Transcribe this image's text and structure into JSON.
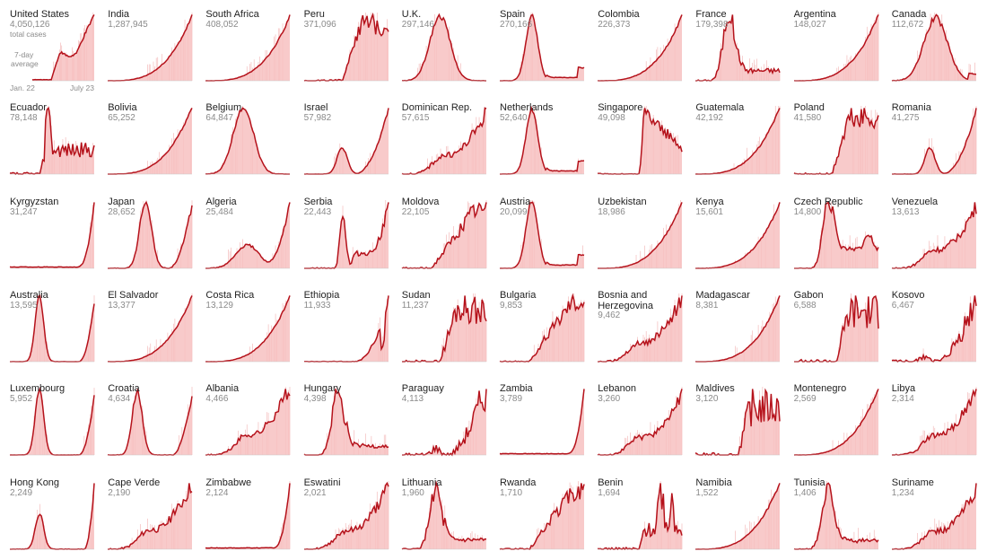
{
  "colors": {
    "line": "#b5121b",
    "fill": "#f7c1c1",
    "spike": "#f2b0b0"
  },
  "legend": {
    "total_cases": "total cases",
    "avg_line1": "7-day",
    "avg_line2": "average",
    "date_start": "Jan. 22",
    "date_end": "July 23"
  },
  "chart_data": {
    "type": "area",
    "panels": [
      {
        "name": "United States",
        "cases": "4,050,126",
        "shape": "us"
      },
      {
        "name": "India",
        "cases": "1,287,945",
        "shape": "exp"
      },
      {
        "name": "South Africa",
        "cases": "408,052",
        "shape": "exp"
      },
      {
        "name": "Peru",
        "cases": "371,096",
        "shape": "plateau_noisy"
      },
      {
        "name": "U.K.",
        "cases": "297,146",
        "shape": "early_peak"
      },
      {
        "name": "Spain",
        "cases": "270,166",
        "shape": "early_sharp"
      },
      {
        "name": "Colombia",
        "cases": "226,373",
        "shape": "exp"
      },
      {
        "name": "France",
        "cases": "179,398",
        "shape": "early_noisy"
      },
      {
        "name": "Argentina",
        "cases": "148,027",
        "shape": "exp"
      },
      {
        "name": "Canada",
        "cases": "112,672",
        "shape": "canada"
      },
      {
        "name": "Ecuador",
        "cases": "78,148",
        "shape": "ecuador"
      },
      {
        "name": "Bolivia",
        "cases": "65,252",
        "shape": "exp"
      },
      {
        "name": "Belgium",
        "cases": "64,847",
        "shape": "early_peak"
      },
      {
        "name": "Israel",
        "cases": "57,982",
        "shape": "israel"
      },
      {
        "name": "Dominican Rep.",
        "cases": "57,615",
        "shape": "exp_noisy"
      },
      {
        "name": "Netherlands",
        "cases": "52,640",
        "shape": "early_sharp"
      },
      {
        "name": "Singapore",
        "cases": "49,098",
        "shape": "singapore"
      },
      {
        "name": "Guatemala",
        "cases": "42,192",
        "shape": "exp"
      },
      {
        "name": "Poland",
        "cases": "41,580",
        "shape": "plateau_noisy"
      },
      {
        "name": "Romania",
        "cases": "41,275",
        "shape": "israel"
      },
      {
        "name": "Kyrgyzstan",
        "cases": "31,247",
        "shape": "late_spike"
      },
      {
        "name": "Japan",
        "cases": "28,652",
        "shape": "japan"
      },
      {
        "name": "Algeria",
        "cases": "25,484",
        "shape": "algeria"
      },
      {
        "name": "Serbia",
        "cases": "22,443",
        "shape": "serbia"
      },
      {
        "name": "Moldova",
        "cases": "22,105",
        "shape": "moldova"
      },
      {
        "name": "Austria",
        "cases": "20,099",
        "shape": "early_sharp"
      },
      {
        "name": "Uzbekistan",
        "cases": "18,986",
        "shape": "exp"
      },
      {
        "name": "Kenya",
        "cases": "15,601",
        "shape": "exp"
      },
      {
        "name": "Czech Republic",
        "cases": "14,800",
        "shape": "czech"
      },
      {
        "name": "Venezuela",
        "cases": "13,613",
        "shape": "exp_noisy"
      },
      {
        "name": "Australia",
        "cases": "13,595",
        "shape": "australia"
      },
      {
        "name": "El Salvador",
        "cases": "13,377",
        "shape": "exp"
      },
      {
        "name": "Costa Rica",
        "cases": "13,129",
        "shape": "exp"
      },
      {
        "name": "Ethiopia",
        "cases": "11,933",
        "shape": "ethiopia"
      },
      {
        "name": "Sudan",
        "cases": "11,237",
        "shape": "sudan"
      },
      {
        "name": "Bulgaria",
        "cases": "9,853",
        "shape": "moldova"
      },
      {
        "name": "Bosnia and\nHerzegovina",
        "cases": "9,462",
        "shape": "exp_noisy"
      },
      {
        "name": "Madagascar",
        "cases": "8,381",
        "shape": "exp"
      },
      {
        "name": "Gabon",
        "cases": "6,588",
        "shape": "gabon"
      },
      {
        "name": "Kosovo",
        "cases": "6,467",
        "shape": "late_noisy"
      },
      {
        "name": "Luxembourg",
        "cases": "5,952",
        "shape": "australia"
      },
      {
        "name": "Croatia",
        "cases": "4,634",
        "shape": "croatia"
      },
      {
        "name": "Albania",
        "cases": "4,466",
        "shape": "exp_noisy"
      },
      {
        "name": "Hungary",
        "cases": "4,398",
        "shape": "early_noisy"
      },
      {
        "name": "Paraguay",
        "cases": "4,113",
        "shape": "late_noisy"
      },
      {
        "name": "Zambia",
        "cases": "3,789",
        "shape": "late_spike"
      },
      {
        "name": "Lebanon",
        "cases": "3,260",
        "shape": "exp_noisy"
      },
      {
        "name": "Maldives",
        "cases": "3,120",
        "shape": "gabon"
      },
      {
        "name": "Montenegro",
        "cases": "2,569",
        "shape": "exp"
      },
      {
        "name": "Libya",
        "cases": "2,314",
        "shape": "exp_noisy"
      },
      {
        "name": "Hong Kong",
        "cases": "2,249",
        "shape": "hongkong"
      },
      {
        "name": "Cape Verde",
        "cases": "2,190",
        "shape": "exp_noisy"
      },
      {
        "name": "Zimbabwe",
        "cases": "2,124",
        "shape": "late_spike"
      },
      {
        "name": "Eswatini",
        "cases": "2,021",
        "shape": "exp_noisy"
      },
      {
        "name": "Lithuania",
        "cases": "1,960",
        "shape": "early_noisy"
      },
      {
        "name": "Rwanda",
        "cases": "1,710",
        "shape": "moldova"
      },
      {
        "name": "Benin",
        "cases": "1,694",
        "shape": "benin"
      },
      {
        "name": "Namibia",
        "cases": "1,522",
        "shape": "exp"
      },
      {
        "name": "Tunisia",
        "cases": "1,406",
        "shape": "early_noisy"
      },
      {
        "name": "Suriname",
        "cases": "1,234",
        "shape": "exp_noisy"
      }
    ]
  }
}
